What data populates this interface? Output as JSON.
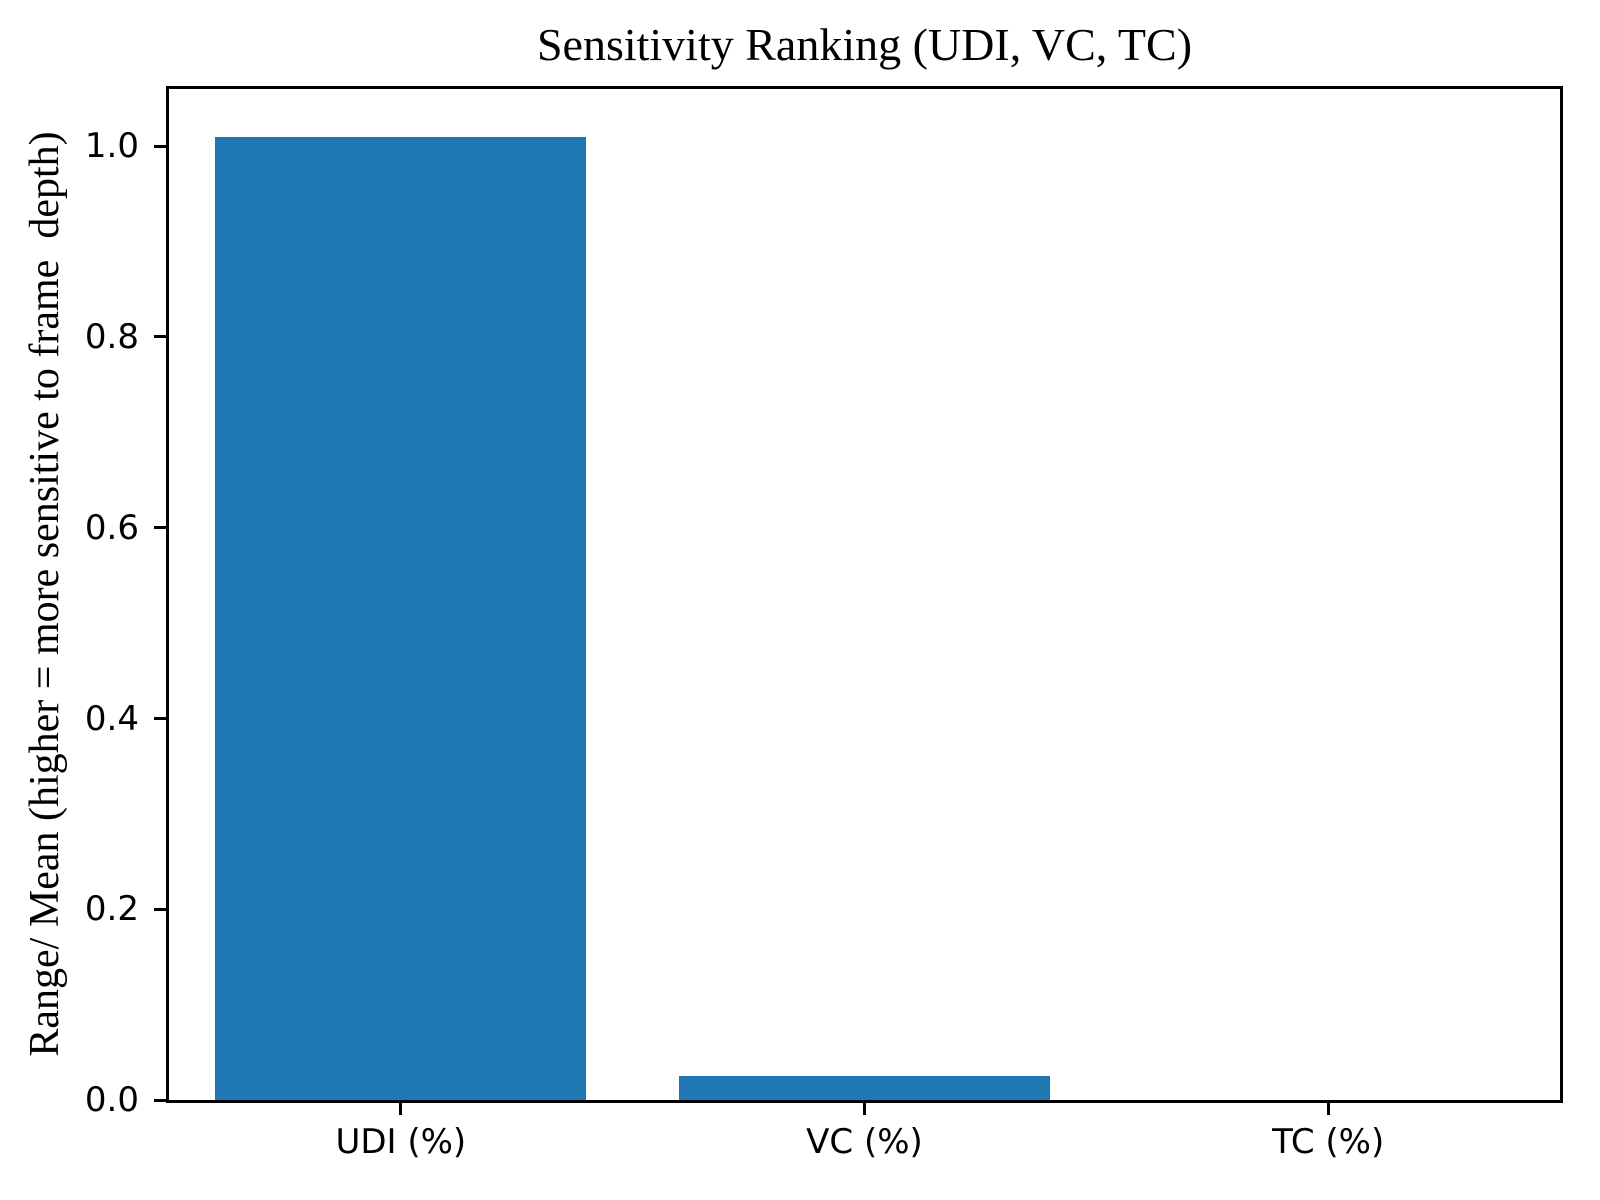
{
  "chart_data": {
    "type": "bar",
    "title": "Sensitivity Ranking (UDI, VC, TC)",
    "ylabel": "Range/ Mean (higher = more sensitive to frame  depth)",
    "xlabel": "",
    "categories": [
      "UDI (%)",
      "VC (%)",
      "TC (%)"
    ],
    "values": [
      1.01,
      0.025,
      0.0
    ],
    "yticks": [
      0.0,
      0.2,
      0.4,
      0.6,
      0.8,
      1.0
    ],
    "ytick_labels": [
      "0.0",
      "0.2",
      "0.4",
      "0.6",
      "0.8",
      "1.0"
    ],
    "ylim": [
      0,
      1.06
    ],
    "bar_width_fraction": 0.8,
    "grid": false,
    "legend": null,
    "colors": {
      "bar": "#1f77b4",
      "spine": "#000000",
      "text": "#000000",
      "background": "#ffffff"
    }
  }
}
